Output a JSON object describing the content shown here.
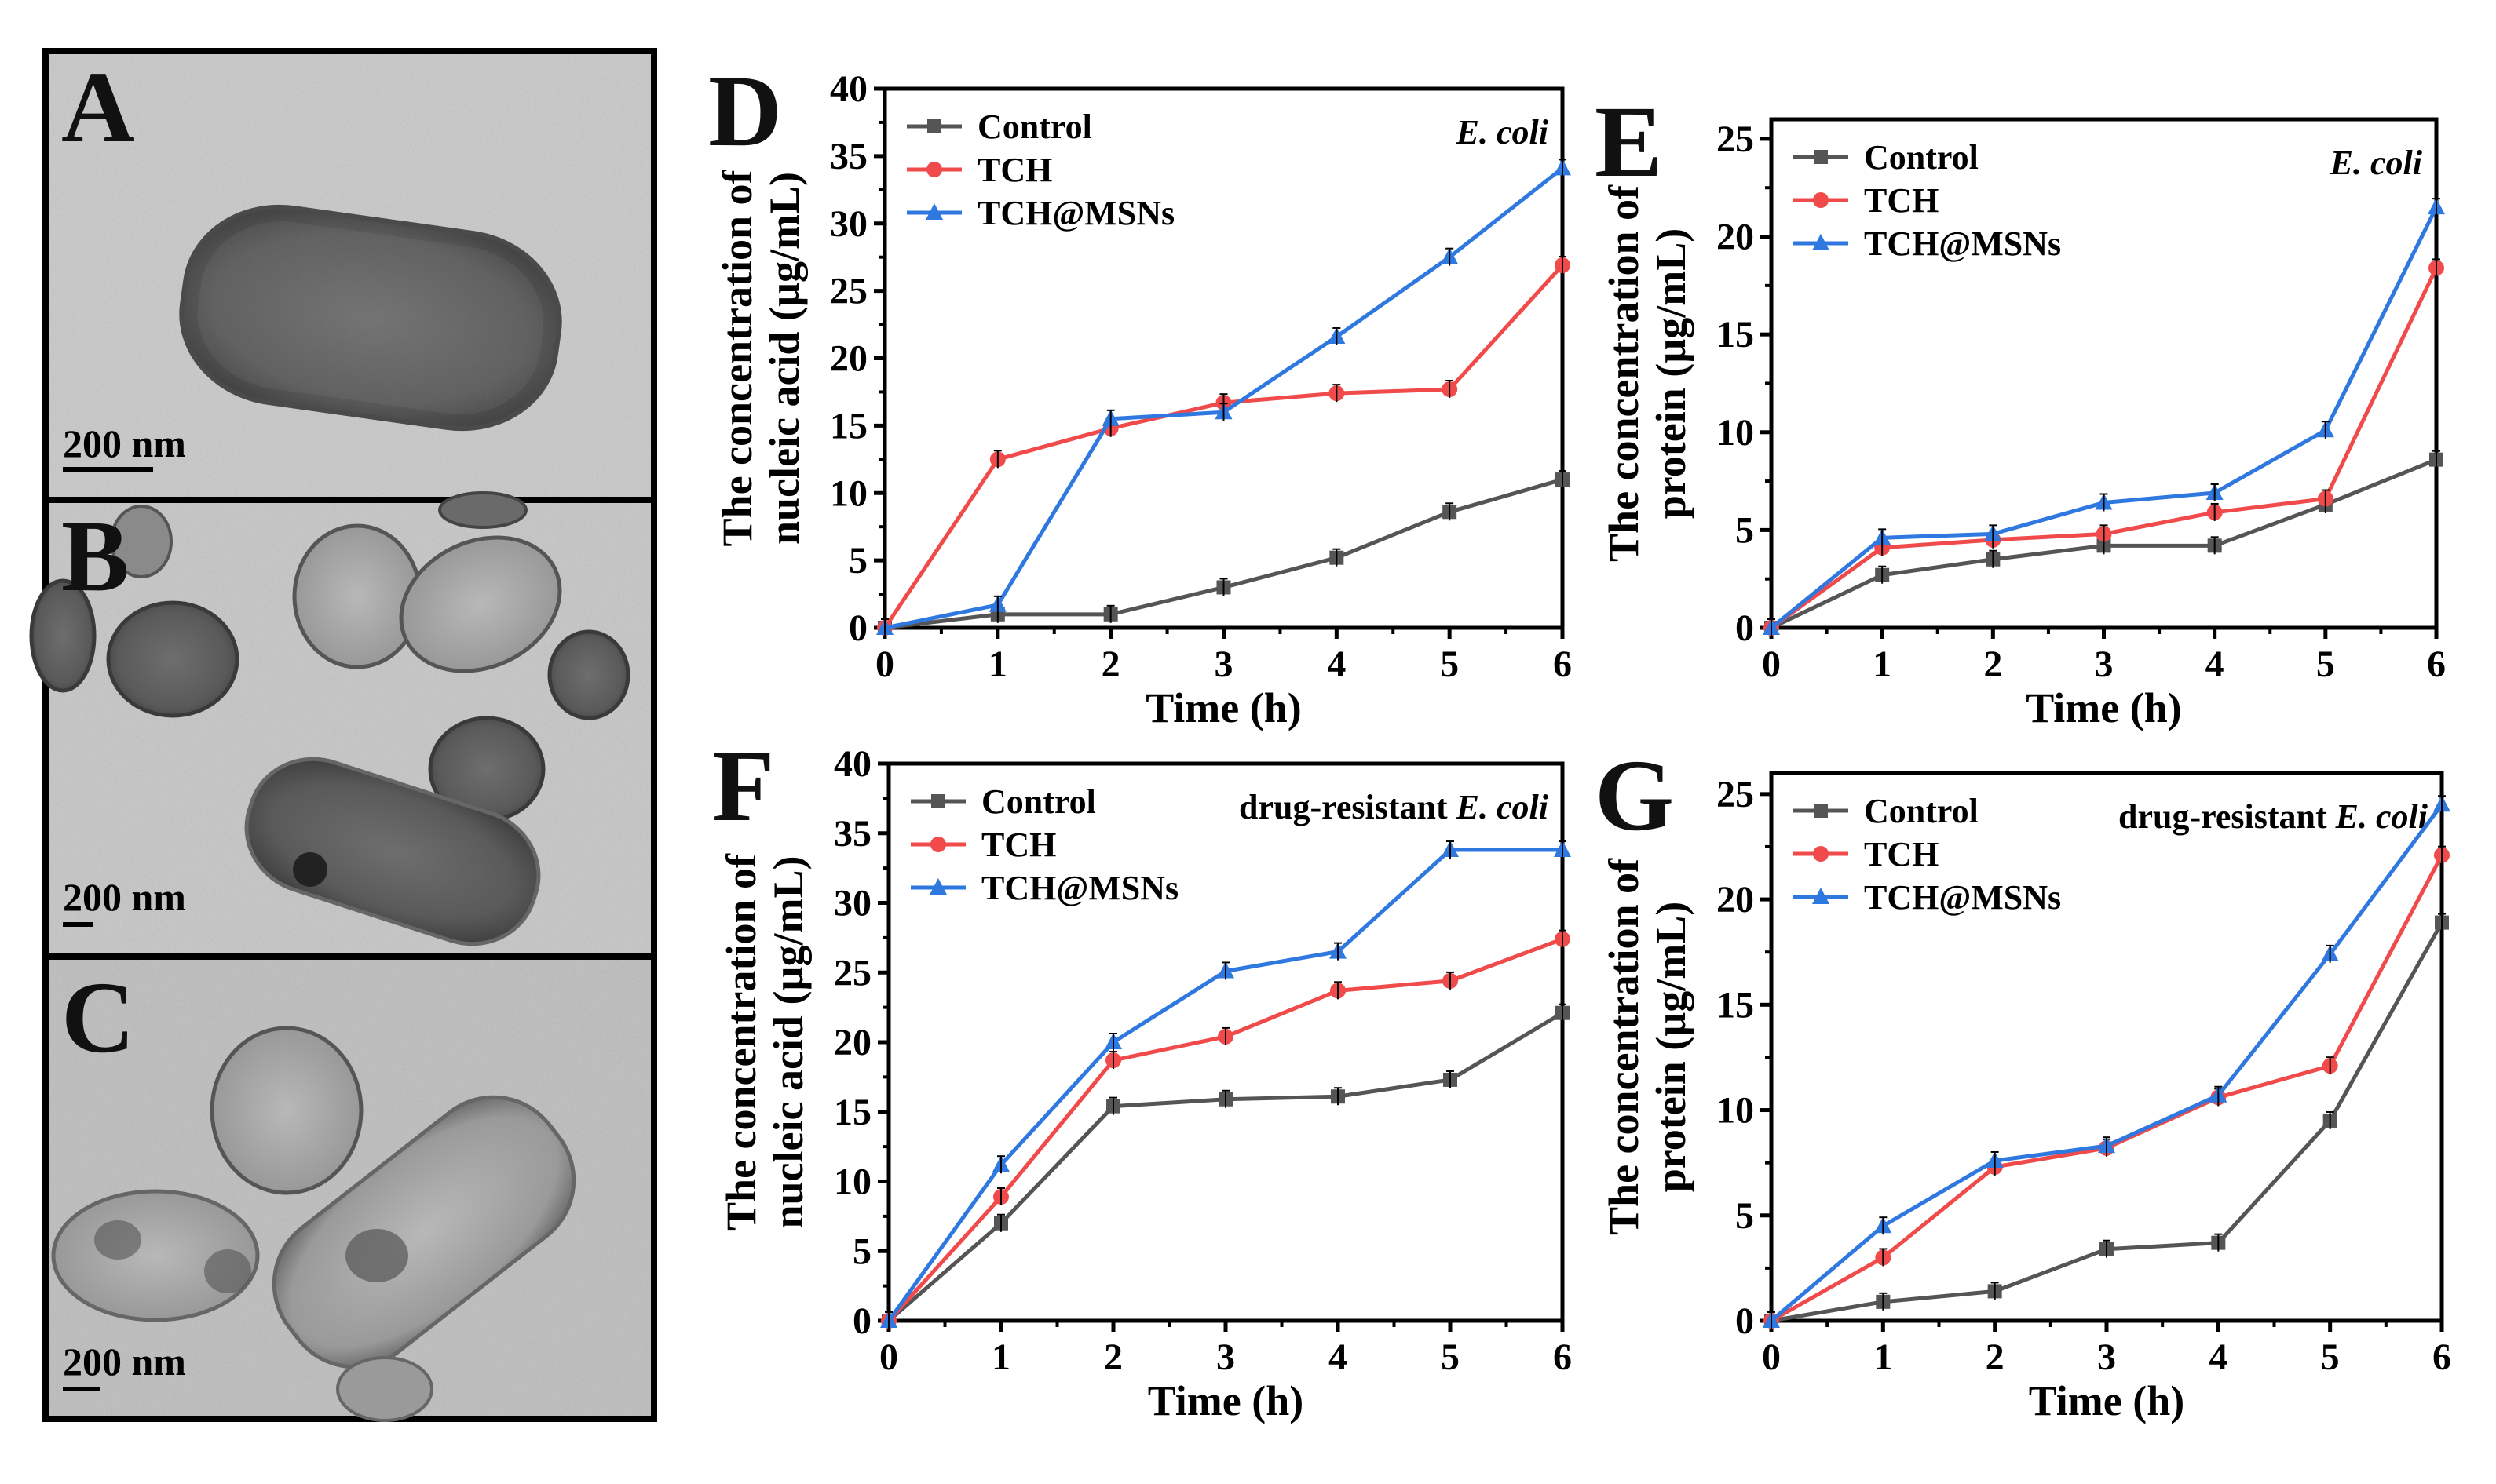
{
  "figure": {
    "tem_panels": [
      {
        "letter": "A",
        "scale_bar": "200 nm"
      },
      {
        "letter": "B",
        "scale_bar": "200 nm"
      },
      {
        "letter": "C",
        "scale_bar": "200 nm"
      }
    ]
  },
  "colors": {
    "control": "#555555",
    "tch": "#f04a4a",
    "tch_msns": "#2f78e0",
    "axis": "#000000"
  },
  "chart_data": [
    {
      "panel": "D",
      "type": "line",
      "organism_prefix": "",
      "organism_italic": "E. coli",
      "xlabel": "Time (h)",
      "ylabel_line1": "The concentration of",
      "ylabel_line2": "nucleic acid (µg/mL)",
      "xlim": [
        0,
        6
      ],
      "ylim": [
        0,
        40
      ],
      "xticks": [
        0,
        1,
        2,
        3,
        4,
        5,
        6
      ],
      "yticks": [
        0,
        5,
        10,
        15,
        20,
        25,
        30,
        35,
        40
      ],
      "x": [
        0,
        1,
        2,
        3,
        4,
        5,
        6
      ],
      "series": [
        {
          "name": "Control",
          "key": "control",
          "marker": "square",
          "values": [
            0,
            1.0,
            1.0,
            3.0,
            5.2,
            8.6,
            11.0
          ]
        },
        {
          "name": "TCH",
          "key": "tch",
          "marker": "circle",
          "values": [
            0,
            12.5,
            14.8,
            16.7,
            17.4,
            17.7,
            26.9
          ]
        },
        {
          "name": "TCH@MSNs",
          "key": "tch_msns",
          "marker": "triangle",
          "values": [
            0,
            1.7,
            15.5,
            16.0,
            21.6,
            27.5,
            34.1
          ]
        }
      ]
    },
    {
      "panel": "E",
      "type": "line",
      "organism_prefix": "",
      "organism_italic": "E. coli",
      "xlabel": "Time (h)",
      "ylabel_line1": "The concentration of",
      "ylabel_line2": "protein (µg/mL)",
      "xlim": [
        0,
        6
      ],
      "ylim": [
        0,
        26
      ],
      "xticks": [
        0,
        1,
        2,
        3,
        4,
        5,
        6
      ],
      "yticks": [
        0,
        5,
        10,
        15,
        20,
        25
      ],
      "x": [
        0,
        1,
        2,
        3,
        4,
        5,
        6
      ],
      "series": [
        {
          "name": "Control",
          "key": "control",
          "marker": "square",
          "values": [
            0,
            2.7,
            3.5,
            4.2,
            4.2,
            6.3,
            8.6
          ]
        },
        {
          "name": "TCH",
          "key": "tch",
          "marker": "circle",
          "values": [
            0,
            4.1,
            4.5,
            4.8,
            5.9,
            6.6,
            18.4
          ]
        },
        {
          "name": "TCH@MSNs",
          "key": "tch_msns",
          "marker": "triangle",
          "values": [
            0,
            4.6,
            4.8,
            6.4,
            6.9,
            10.1,
            21.5
          ]
        }
      ]
    },
    {
      "panel": "F",
      "type": "line",
      "organism_prefix": "drug-resistant ",
      "organism_italic": "E. coli",
      "xlabel": "Time (h)",
      "ylabel_line1": "The concentration of",
      "ylabel_line2": "nucleic acid (µg/mL)",
      "xlim": [
        0,
        6
      ],
      "ylim": [
        0,
        40
      ],
      "xticks": [
        0,
        1,
        2,
        3,
        4,
        5,
        6
      ],
      "yticks": [
        0,
        5,
        10,
        15,
        20,
        25,
        30,
        35,
        40
      ],
      "x": [
        0,
        1,
        2,
        3,
        4,
        5,
        6
      ],
      "series": [
        {
          "name": "Control",
          "key": "control",
          "marker": "square",
          "values": [
            0,
            7.0,
            15.4,
            15.9,
            16.1,
            17.3,
            22.1
          ]
        },
        {
          "name": "TCH",
          "key": "tch",
          "marker": "circle",
          "values": [
            0,
            8.9,
            18.7,
            20.4,
            23.7,
            24.4,
            27.4
          ]
        },
        {
          "name": "TCH@MSNs",
          "key": "tch_msns",
          "marker": "triangle",
          "values": [
            0,
            11.2,
            20.0,
            25.1,
            26.5,
            33.8,
            33.8
          ]
        }
      ]
    },
    {
      "panel": "G",
      "type": "line",
      "organism_prefix": "drug-resistant ",
      "organism_italic": "E. coli",
      "xlabel": "Time (h)",
      "ylabel_line1": "The concentration of",
      "ylabel_line2": "protein (µg/mL)",
      "xlim": [
        0,
        6
      ],
      "ylim": [
        0,
        26
      ],
      "xticks": [
        0,
        1,
        2,
        3,
        4,
        5,
        6
      ],
      "yticks": [
        0,
        5,
        10,
        15,
        20,
        25
      ],
      "x": [
        0,
        1,
        2,
        3,
        4,
        5,
        6
      ],
      "series": [
        {
          "name": "Control",
          "key": "control",
          "marker": "square",
          "values": [
            0,
            0.9,
            1.4,
            3.4,
            3.7,
            9.5,
            18.9
          ]
        },
        {
          "name": "TCH",
          "key": "tch",
          "marker": "circle",
          "values": [
            0,
            3.0,
            7.3,
            8.2,
            10.6,
            12.1,
            22.1
          ]
        },
        {
          "name": "TCH@MSNs",
          "key": "tch_msns",
          "marker": "triangle",
          "values": [
            0,
            4.5,
            7.6,
            8.3,
            10.7,
            17.4,
            24.5
          ]
        }
      ]
    }
  ]
}
